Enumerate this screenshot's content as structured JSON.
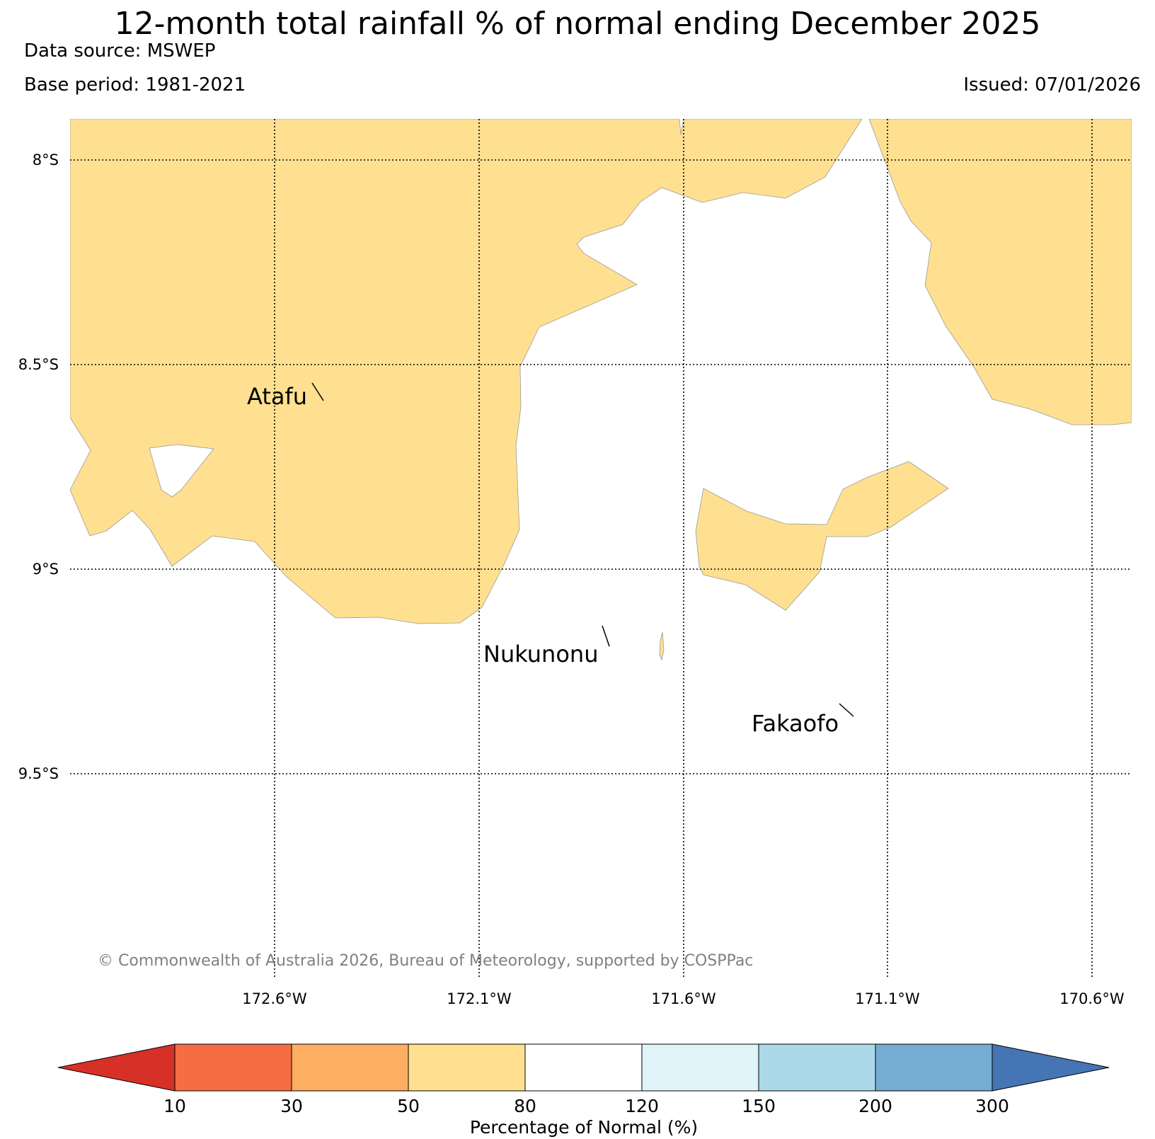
{
  "header": {
    "title": "12-month total rainfall % of normal ending December 2025",
    "data_source": "Data source: MSWEP",
    "base_period": "Base period: 1981-2021",
    "issued": "Issued: 07/01/2026"
  },
  "map": {
    "lon_ticks": [
      "172.6°W",
      "172.1°W",
      "171.6°W",
      "171.1°W",
      "170.6°W"
    ],
    "lat_ticks": [
      "8°S",
      "8.5°S",
      "9°S",
      "9.5°S"
    ],
    "atolls": [
      "Atafu",
      "Nukunonu",
      "Fakaofo"
    ],
    "land_category": "50-80",
    "land_color": "#fee090",
    "copyright": "© Commonwealth of Australia 2026, Bureau of Meteorology, supported by COSPPac"
  },
  "colorbar": {
    "label": "Percentage of Normal (%)",
    "ticks": [
      "10",
      "30",
      "50",
      "80",
      "120",
      "150",
      "200",
      "300"
    ],
    "colors": [
      "#d73027",
      "#f46d43",
      "#fdae61",
      "#fee090",
      "#ffffff",
      "#e0f3f8",
      "#abd9e9",
      "#74add1",
      "#4575b4"
    ]
  }
}
